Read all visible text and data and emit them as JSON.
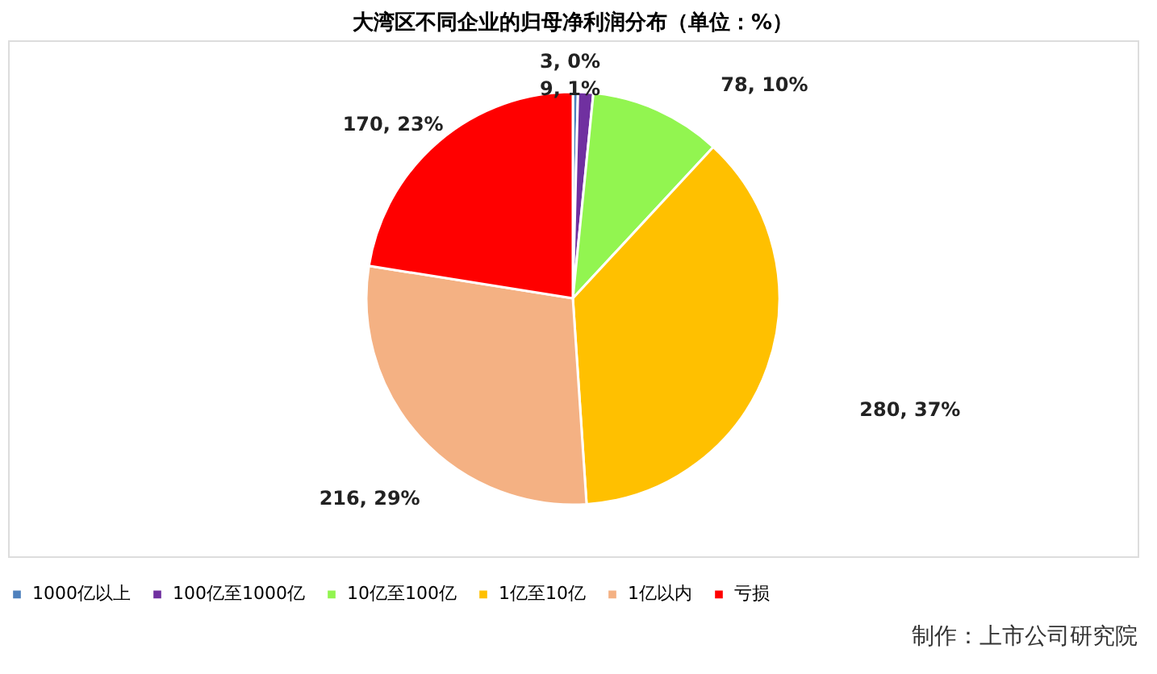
{
  "chart_data": {
    "type": "pie",
    "title": "大湾区不同企业的归母净利润分布（单位：%）",
    "categories": [
      "1000亿以上",
      "100亿至1000亿",
      "10亿至100亿",
      "1亿至10亿",
      "1亿以内",
      "亏损"
    ],
    "values": [
      3,
      9,
      78,
      280,
      216,
      170
    ],
    "colors": [
      "#4f81bd",
      "#7030a0",
      "#92f550",
      "#ffc000",
      "#f4b183",
      "#ff0000"
    ],
    "value_labels": [
      "3, 0%",
      "9, 1%",
      "78, 10%",
      "280, 37%",
      "216, 29%",
      "170, 23%"
    ],
    "legend": "bottom",
    "annotations": [
      "制作：上市公司研究院"
    ]
  }
}
